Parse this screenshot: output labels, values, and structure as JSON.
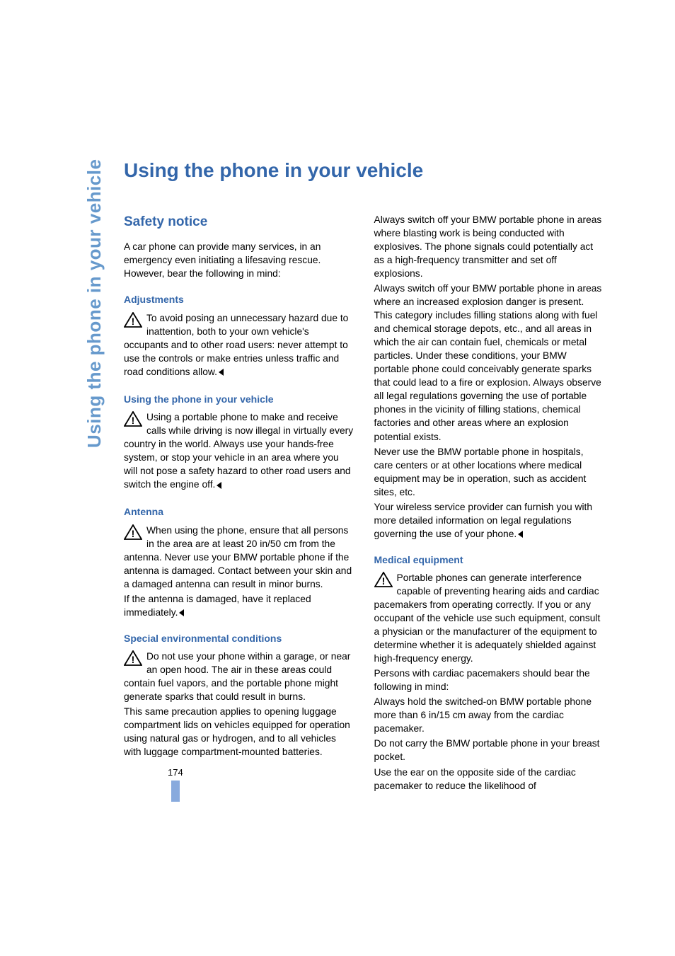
{
  "colors": {
    "heading_blue": "#3366aa",
    "sidetab_blue": "#6699cc",
    "marker_blue": "#88aadd",
    "text": "#000000",
    "background": "#ffffff",
    "warn_border": "#000000",
    "warn_fill": "#ffffff"
  },
  "typography": {
    "body_fontsize": 13.8,
    "body_lineheight": 1.38,
    "h2_fontsize": 19,
    "h3_fontsize": 14,
    "title_fontsize": 28,
    "sidetab_fontsize": 26
  },
  "page_number": "174",
  "side_tab": "Using the phone in your vehicle",
  "title": "Using the phone in your vehicle",
  "left": {
    "section_title": "Safety notice",
    "intro": "A car phone can provide many services, in an emergency even initiating a lifesaving rescue. However, bear the following in mind:",
    "adjustments": {
      "heading": "Adjustments",
      "body": "To avoid posing an unnecessary hazard due to inattention, both to your own vehicle's occupants and to other road users: never attempt to use the controls or make entries unless traffic and road conditions allow."
    },
    "using_phone": {
      "heading": "Using the phone in your vehicle",
      "body": "Using a portable phone to make and receive calls while driving is now illegal in virtually every country in the world. Always use your hands-free system, or stop your vehicle in an area where you will not pose a safety hazard to other road users and switch the engine off."
    },
    "antenna": {
      "heading": "Antenna",
      "body": "When using the phone, ensure that all persons in the area are at least 20 in/50 cm from the antenna. Never use your BMW portable phone if the antenna is damaged. Contact between your skin and a damaged antenna can result in minor burns.",
      "body2": "If the antenna is damaged, have it replaced immediately."
    },
    "special_env": {
      "heading": "Special environmental conditions",
      "body": "Do not use your phone within a garage, or near an open hood. The air in these areas could contain fuel vapors, and the portable phone might generate sparks that could result in burns.",
      "body2": "This same precaution applies to opening luggage compartment lids on vehicles equipped for operation using natural gas or hydrogen, and to all vehicles with luggage compartment-mounted batteries."
    }
  },
  "right": {
    "env_cont1": "Always switch off your BMW portable phone in areas where blasting work is being conducted with explosives. The phone signals could potentially act as a high-frequency transmitter and set off explosions.",
    "env_cont2": "Always switch off your BMW portable phone in areas where an increased explosion danger is present. This category includes filling stations along with fuel and chemical storage depots, etc., and all areas in which the air can contain fuel, chemicals or metal particles. Under these conditions, your BMW portable phone could conceivably generate sparks that could lead to a fire or explosion. Always observe all legal regulations governing the use of portable phones in the vicinity of filling stations, chemical factories and other areas where an explosion potential exists.",
    "env_cont3": "Never use the BMW portable phone in hospitals, care centers or at other locations where medical equipment may be in operation, such as accident sites, etc.",
    "env_cont4": "Your wireless service provider can furnish you with more detailed information on legal regulations governing the use of your phone.",
    "medical": {
      "heading": "Medical equipment",
      "body": "Portable phones can generate interference capable of preventing hearing aids and cardiac pacemakers from operating correctly. If you or any occupant of the vehicle use such equipment, consult a physician or the manufacturer of the equipment to determine whether it is adequately shielded against high-frequency energy.",
      "body2": "Persons with cardiac pacemakers should bear the following in mind:",
      "body3": "Always hold the switched-on BMW portable phone more than 6 in/15 cm away from the cardiac pacemaker.",
      "body4": "Do not carry the BMW portable phone in your breast pocket.",
      "body5": "Use the ear on the opposite side of the cardiac pacemaker to reduce the likelihood of"
    }
  }
}
